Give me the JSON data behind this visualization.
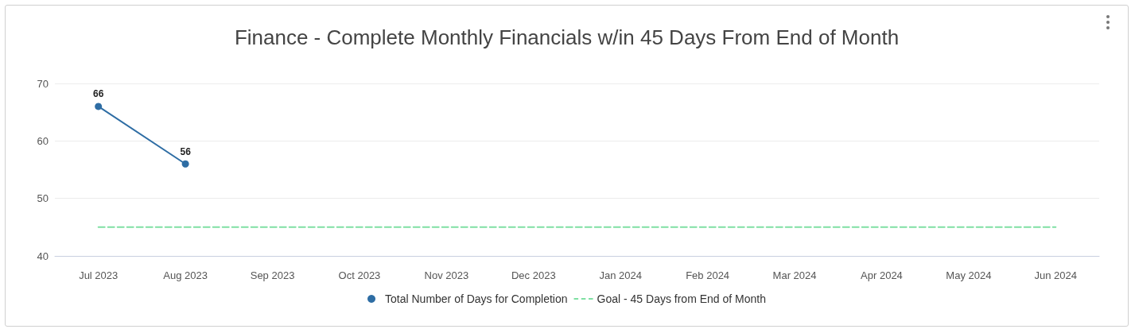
{
  "chart_data": {
    "type": "line",
    "title": "Finance - Complete Monthly Financials w/in 45 Days From End of Month",
    "categories": [
      "Jul 2023",
      "Aug 2023",
      "Sep 2023",
      "Oct 2023",
      "Nov 2023",
      "Dec 2023",
      "Jan 2024",
      "Feb 2024",
      "Mar 2024",
      "Apr 2024",
      "May 2024",
      "Jun 2024"
    ],
    "series": [
      {
        "name": "Total Number of Days for Completion",
        "color": "#2e6da4",
        "marker": "circle",
        "line_style": "solid",
        "values": [
          66,
          56,
          null,
          null,
          null,
          null,
          null,
          null,
          null,
          null,
          null,
          null
        ],
        "value_labels": [
          "66",
          "56",
          null,
          null,
          null,
          null,
          null,
          null,
          null,
          null,
          null,
          null
        ]
      },
      {
        "name": "Goal - 45 Days from End of Month",
        "color": "#7fe0a3",
        "marker": "none",
        "line_style": "dashed",
        "values": [
          45,
          45,
          45,
          45,
          45,
          45,
          45,
          45,
          45,
          45,
          45,
          45
        ]
      }
    ],
    "ylim": [
      40,
      70
    ],
    "yticks": [
      40,
      50,
      60,
      70
    ],
    "grid": "y",
    "legend": "bottom"
  }
}
